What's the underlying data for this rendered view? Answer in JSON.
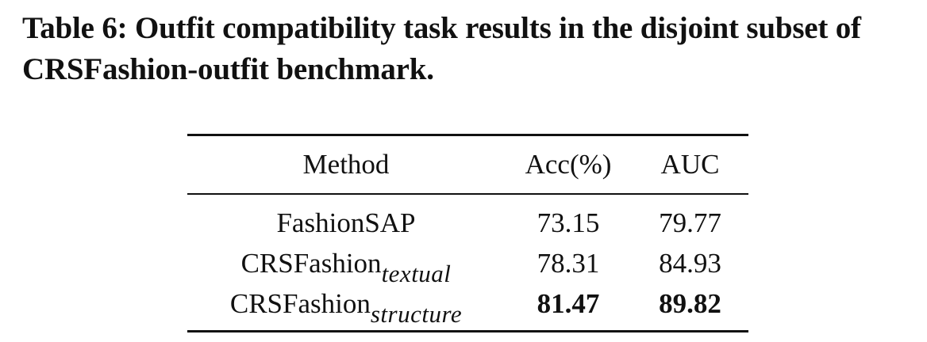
{
  "caption": "Table 6: Outfit compatibility task results in the disjoint subset of CRSFashion-outfit benchmark.",
  "table": {
    "headers": [
      "Method",
      "Acc(%)",
      "AUC"
    ],
    "rows": [
      {
        "method": "FashionSAP",
        "method_sub": "",
        "acc": "73.15",
        "auc": "79.77",
        "bold": false
      },
      {
        "method": "CRSFashion",
        "method_sub": "textual",
        "acc": "78.31",
        "auc": "84.93",
        "bold": false
      },
      {
        "method": "CRSFashion",
        "method_sub": "structure",
        "acc": "81.47",
        "auc": "89.82",
        "bold": true
      }
    ]
  }
}
